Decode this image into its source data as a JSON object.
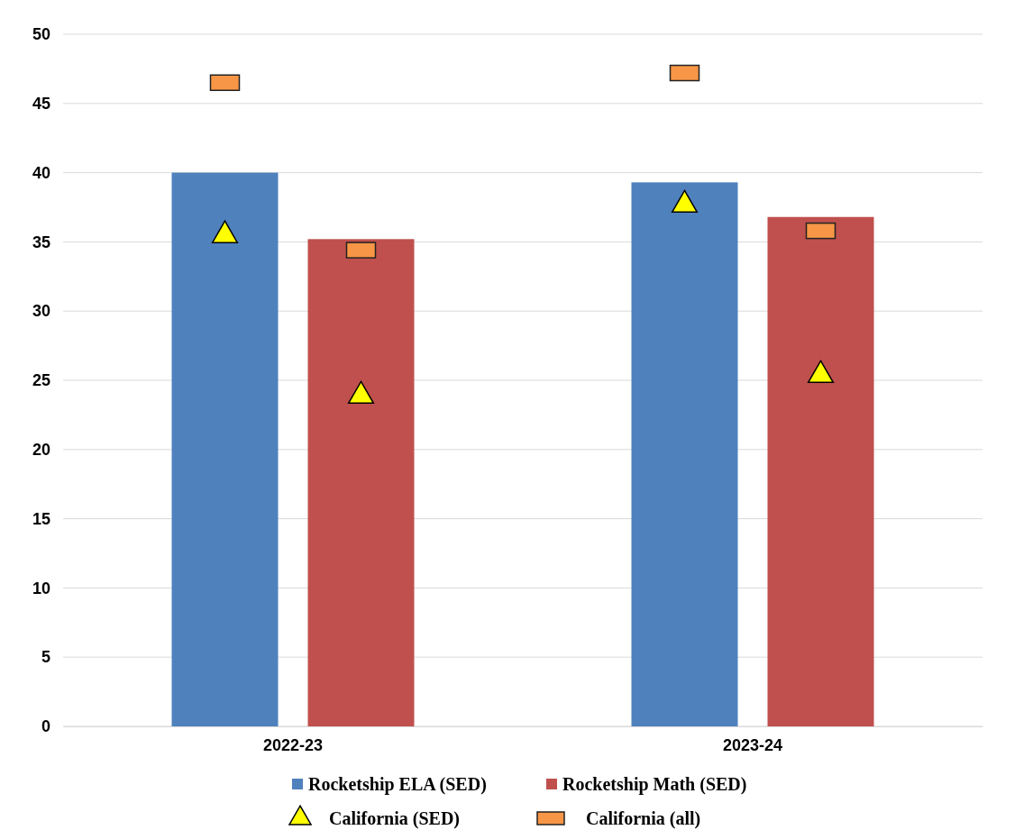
{
  "chart_data": {
    "type": "bar",
    "categories": [
      "2022-23",
      "2023-24"
    ],
    "series": [
      {
        "name": "Rocketship ELA (SED)",
        "color": "#4f81bd",
        "values": [
          40,
          39.3
        ]
      },
      {
        "name": "Rocketship Math (SED)",
        "color": "#c0504d",
        "values": [
          35.2,
          36.8
        ]
      },
      {
        "name": "California (SED)",
        "type": "scatter",
        "marker": "triangle",
        "color": "#ffff00",
        "x": [
          "2022-23",
          "2022-23",
          "2023-24",
          "2023-24"
        ],
        "values": [
          35.6,
          24,
          37.8,
          25.5
        ]
      },
      {
        "name": "California (all)",
        "type": "scatter",
        "marker": "square",
        "color": "#f79646",
        "x": [
          "2022-23",
          "2022-23",
          "2023-24",
          "2023-24"
        ],
        "values": [
          46.5,
          34.4,
          47.2,
          35.8
        ]
      }
    ],
    "ylim": [
      0,
      50
    ],
    "yticks": [
      0,
      5,
      10,
      15,
      20,
      25,
      30,
      35,
      40,
      45,
      50
    ],
    "grid": "y",
    "legend": "bottom"
  }
}
